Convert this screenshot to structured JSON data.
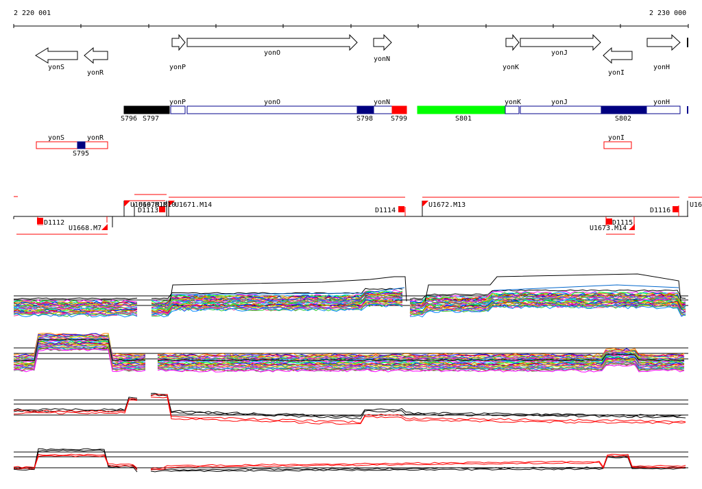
{
  "ruler": {
    "start_label": "2 220 001",
    "end_label": "2 230 000"
  },
  "genes": [
    {
      "name": "yonS",
      "strand": "-",
      "label": "yonS"
    },
    {
      "name": "yonR",
      "strand": "-",
      "label": "yonR"
    },
    {
      "name": "yonP",
      "strand": "+",
      "label": "yonP"
    },
    {
      "name": "yonO",
      "strand": "+",
      "label": "yonO"
    },
    {
      "name": "yonN",
      "strand": "+",
      "label": "yonN"
    },
    {
      "name": "yonK",
      "strand": "+",
      "label": "yonK"
    },
    {
      "name": "yonJ",
      "strand": "+",
      "label": "yonJ"
    },
    {
      "name": "yonI",
      "strand": "-",
      "label": "yonI"
    },
    {
      "name": "yonH",
      "strand": "+",
      "label": "yonH"
    }
  ],
  "segments": [
    {
      "name": "S795",
      "color": "#000080"
    },
    {
      "name": "S796",
      "color": "#000000"
    },
    {
      "name": "S797",
      "color": "#000000"
    },
    {
      "name": "S798",
      "color": "#000080"
    },
    {
      "name": "S799",
      "color": "#ff0000"
    },
    {
      "name": "S801",
      "color": "#00ff00"
    },
    {
      "name": "S802",
      "color": "#000080"
    }
  ],
  "tiling_labels": {
    "u_top": [
      "U1669.M10",
      "U1670.M10",
      "U1671.M14",
      "U1672.M13",
      "U16"
    ],
    "d_top": [
      "D1113",
      "D1114",
      "D1116"
    ],
    "d_bottom": [
      "D1112",
      "D1115"
    ],
    "u_bottom": [
      "U1668.M7",
      "U1673.M14"
    ]
  },
  "colors": {
    "accent_red": "#ff0000",
    "segment_blue": "#000080",
    "green": "#00ff00"
  }
}
